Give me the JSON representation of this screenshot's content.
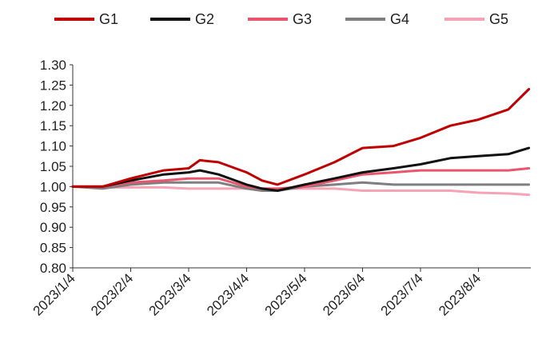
{
  "chart_data": {
    "type": "line",
    "title": "",
    "xlabel": "",
    "ylabel": "",
    "ylim": [
      0.8,
      1.3
    ],
    "yticks": [
      "1.30",
      "1.25",
      "1.20",
      "1.15",
      "1.10",
      "1.05",
      "1.00",
      "0.95",
      "0.90",
      "0.85",
      "0.80"
    ],
    "xticks": [
      "2023/1/4",
      "2023/2/4",
      "2023/3/4",
      "2023/4/4",
      "2023/5/4",
      "2023/6/4",
      "2023/7/4",
      "2023/8/4"
    ],
    "x": [
      "2023/1/4",
      "2023/1/20",
      "2023/2/4",
      "2023/2/20",
      "2023/3/4",
      "2023/3/10",
      "2023/3/20",
      "2023/4/4",
      "2023/4/12",
      "2023/4/20",
      "2023/5/4",
      "2023/5/20",
      "2023/6/4",
      "2023/6/20",
      "2023/7/4",
      "2023/7/20",
      "2023/8/4",
      "2023/8/20",
      "2023/8/31"
    ],
    "legend_position": "top",
    "grid": false,
    "series": [
      {
        "name": "G1",
        "color": "#c00000",
        "values": [
          1.0,
          1.0,
          1.02,
          1.04,
          1.045,
          1.065,
          1.06,
          1.035,
          1.015,
          1.005,
          1.03,
          1.06,
          1.095,
          1.1,
          1.12,
          1.15,
          1.165,
          1.19,
          1.24
        ]
      },
      {
        "name": "G2",
        "color": "#111111",
        "values": [
          1.0,
          1.0,
          1.015,
          1.03,
          1.035,
          1.04,
          1.03,
          1.005,
          0.995,
          0.99,
          1.005,
          1.02,
          1.035,
          1.045,
          1.055,
          1.07,
          1.075,
          1.08,
          1.095
        ]
      },
      {
        "name": "G3",
        "color": "#e8566e",
        "values": [
          1.0,
          1.0,
          1.01,
          1.015,
          1.02,
          1.02,
          1.02,
          1.0,
          0.995,
          0.995,
          1.0,
          1.015,
          1.03,
          1.035,
          1.04,
          1.04,
          1.04,
          1.04,
          1.045
        ]
      },
      {
        "name": "G4",
        "color": "#7f7f7f",
        "values": [
          1.0,
          0.995,
          1.005,
          1.01,
          1.01,
          1.01,
          1.01,
          0.995,
          0.99,
          0.99,
          1.0,
          1.005,
          1.01,
          1.005,
          1.005,
          1.005,
          1.005,
          1.005,
          1.005
        ]
      },
      {
        "name": "G5",
        "color": "#f5a3b5",
        "values": [
          1.0,
          0.998,
          0.998,
          0.998,
          0.995,
          0.995,
          0.995,
          0.995,
          0.995,
          0.995,
          0.995,
          0.995,
          0.99,
          0.99,
          0.99,
          0.99,
          0.985,
          0.983,
          0.98
        ]
      }
    ]
  }
}
